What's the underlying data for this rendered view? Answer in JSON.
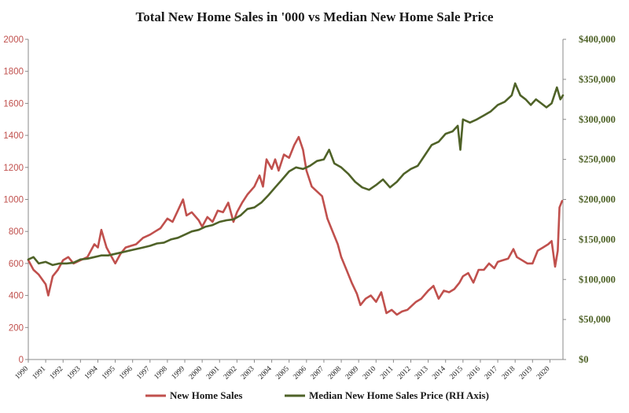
{
  "chart_data": {
    "type": "line",
    "title": "Total New Home Sales in '000 vs Median New Home Sale Price",
    "x_ticks": [
      "1990",
      "1991",
      "1992",
      "1993",
      "1994",
      "1995",
      "1996",
      "1997",
      "1998",
      "1999",
      "2000",
      "2001",
      "2002",
      "2003",
      "2004",
      "2005",
      "2006",
      "2007",
      "2008",
      "2009",
      "2010",
      "2011",
      "2012",
      "2013",
      "2014",
      "2015",
      "2016",
      "2017",
      "2018",
      "2019",
      "2020"
    ],
    "left_axis": {
      "ylim": [
        0,
        2000
      ],
      "ticks": [
        "0",
        "200",
        "400",
        "600",
        "800",
        "1000",
        "1200",
        "1400",
        "1600",
        "1800",
        "2000"
      ]
    },
    "right_axis": {
      "ylim": [
        0,
        400000
      ],
      "ticks": [
        "$0",
        "$50,000",
        "$100,000",
        "$150,000",
        "$200,000",
        "$250,000",
        "$300,000",
        "$350,000",
        "$400,000"
      ]
    },
    "xlim": [
      1990,
      2020.75
    ],
    "grid": false,
    "legend_position": "bottom",
    "series": [
      {
        "name": "New Home Sales",
        "axis": "left",
        "color": "#c0504d",
        "points": [
          [
            1990.0,
            620
          ],
          [
            1990.3,
            560
          ],
          [
            1990.6,
            530
          ],
          [
            1991.0,
            470
          ],
          [
            1991.15,
            400
          ],
          [
            1991.4,
            520
          ],
          [
            1991.7,
            560
          ],
          [
            1992.0,
            620
          ],
          [
            1992.3,
            640
          ],
          [
            1992.6,
            600
          ],
          [
            1993.0,
            620
          ],
          [
            1993.4,
            640
          ],
          [
            1993.8,
            720
          ],
          [
            1994.0,
            700
          ],
          [
            1994.2,
            810
          ],
          [
            1994.5,
            700
          ],
          [
            1994.8,
            640
          ],
          [
            1995.0,
            600
          ],
          [
            1995.3,
            660
          ],
          [
            1995.6,
            700
          ],
          [
            1995.9,
            710
          ],
          [
            1996.2,
            720
          ],
          [
            1996.6,
            760
          ],
          [
            1997.0,
            780
          ],
          [
            1997.3,
            800
          ],
          [
            1997.6,
            820
          ],
          [
            1998.0,
            880
          ],
          [
            1998.3,
            860
          ],
          [
            1998.6,
            930
          ],
          [
            1998.9,
            1000
          ],
          [
            1999.1,
            900
          ],
          [
            1999.4,
            920
          ],
          [
            1999.8,
            870
          ],
          [
            2000.0,
            830
          ],
          [
            2000.3,
            890
          ],
          [
            2000.6,
            860
          ],
          [
            2000.9,
            930
          ],
          [
            2001.2,
            920
          ],
          [
            2001.5,
            980
          ],
          [
            2001.8,
            860
          ],
          [
            2002.0,
            920
          ],
          [
            2002.3,
            980
          ],
          [
            2002.6,
            1030
          ],
          [
            2003.0,
            1080
          ],
          [
            2003.3,
            1150
          ],
          [
            2003.5,
            1080
          ],
          [
            2003.7,
            1250
          ],
          [
            2004.0,
            1190
          ],
          [
            2004.2,
            1250
          ],
          [
            2004.4,
            1180
          ],
          [
            2004.7,
            1280
          ],
          [
            2005.0,
            1260
          ],
          [
            2005.3,
            1340
          ],
          [
            2005.55,
            1390
          ],
          [
            2005.8,
            1310
          ],
          [
            2006.0,
            1180
          ],
          [
            2006.3,
            1080
          ],
          [
            2006.6,
            1050
          ],
          [
            2006.9,
            1020
          ],
          [
            2007.2,
            880
          ],
          [
            2007.5,
            800
          ],
          [
            2007.8,
            720
          ],
          [
            2008.0,
            640
          ],
          [
            2008.3,
            560
          ],
          [
            2008.6,
            480
          ],
          [
            2008.9,
            410
          ],
          [
            2009.1,
            340
          ],
          [
            2009.4,
            380
          ],
          [
            2009.7,
            400
          ],
          [
            2010.0,
            360
          ],
          [
            2010.3,
            420
          ],
          [
            2010.6,
            290
          ],
          [
            2010.9,
            310
          ],
          [
            2011.2,
            280
          ],
          [
            2011.5,
            300
          ],
          [
            2011.8,
            310
          ],
          [
            2012.0,
            330
          ],
          [
            2012.3,
            360
          ],
          [
            2012.6,
            380
          ],
          [
            2013.0,
            430
          ],
          [
            2013.3,
            460
          ],
          [
            2013.6,
            380
          ],
          [
            2013.9,
            430
          ],
          [
            2014.2,
            420
          ],
          [
            2014.5,
            440
          ],
          [
            2014.8,
            480
          ],
          [
            2015.0,
            520
          ],
          [
            2015.3,
            540
          ],
          [
            2015.6,
            480
          ],
          [
            2015.9,
            560
          ],
          [
            2016.2,
            560
          ],
          [
            2016.5,
            600
          ],
          [
            2016.8,
            570
          ],
          [
            2017.0,
            610
          ],
          [
            2017.3,
            620
          ],
          [
            2017.6,
            630
          ],
          [
            2017.9,
            690
          ],
          [
            2018.1,
            640
          ],
          [
            2018.4,
            620
          ],
          [
            2018.7,
            600
          ],
          [
            2019.0,
            600
          ],
          [
            2019.3,
            680
          ],
          [
            2019.6,
            700
          ],
          [
            2019.9,
            720
          ],
          [
            2020.1,
            740
          ],
          [
            2020.3,
            580
          ],
          [
            2020.45,
            680
          ],
          [
            2020.55,
            950
          ],
          [
            2020.7,
            990
          ]
        ]
      },
      {
        "name": "Median New Home Sales Price (RH Axis)",
        "axis": "right",
        "color": "#4f6228",
        "points": [
          [
            1990.0,
            125000
          ],
          [
            1990.3,
            128000
          ],
          [
            1990.6,
            120000
          ],
          [
            1991.0,
            122000
          ],
          [
            1991.4,
            118000
          ],
          [
            1991.8,
            120000
          ],
          [
            1992.2,
            120000
          ],
          [
            1992.6,
            121000
          ],
          [
            1993.0,
            125000
          ],
          [
            1993.4,
            126000
          ],
          [
            1993.8,
            128000
          ],
          [
            1994.2,
            130000
          ],
          [
            1994.6,
            130000
          ],
          [
            1995.0,
            132000
          ],
          [
            1995.4,
            134000
          ],
          [
            1995.8,
            136000
          ],
          [
            1996.2,
            138000
          ],
          [
            1996.6,
            140000
          ],
          [
            1997.0,
            142000
          ],
          [
            1997.4,
            145000
          ],
          [
            1997.8,
            146000
          ],
          [
            1998.2,
            150000
          ],
          [
            1998.6,
            152000
          ],
          [
            1999.0,
            156000
          ],
          [
            1999.4,
            160000
          ],
          [
            1999.8,
            162000
          ],
          [
            2000.2,
            166000
          ],
          [
            2000.6,
            168000
          ],
          [
            2001.0,
            172000
          ],
          [
            2001.4,
            174000
          ],
          [
            2001.8,
            175000
          ],
          [
            2002.2,
            180000
          ],
          [
            2002.6,
            188000
          ],
          [
            2003.0,
            190000
          ],
          [
            2003.4,
            196000
          ],
          [
            2003.8,
            205000
          ],
          [
            2004.2,
            215000
          ],
          [
            2004.6,
            225000
          ],
          [
            2005.0,
            235000
          ],
          [
            2005.4,
            240000
          ],
          [
            2005.8,
            238000
          ],
          [
            2006.2,
            242000
          ],
          [
            2006.6,
            248000
          ],
          [
            2007.0,
            250000
          ],
          [
            2007.3,
            262000
          ],
          [
            2007.6,
            245000
          ],
          [
            2008.0,
            240000
          ],
          [
            2008.4,
            232000
          ],
          [
            2008.8,
            222000
          ],
          [
            2009.2,
            215000
          ],
          [
            2009.6,
            212000
          ],
          [
            2010.0,
            218000
          ],
          [
            2010.4,
            225000
          ],
          [
            2010.8,
            215000
          ],
          [
            2011.2,
            222000
          ],
          [
            2011.6,
            232000
          ],
          [
            2012.0,
            238000
          ],
          [
            2012.4,
            242000
          ],
          [
            2012.8,
            255000
          ],
          [
            2013.2,
            268000
          ],
          [
            2013.6,
            272000
          ],
          [
            2014.0,
            282000
          ],
          [
            2014.4,
            285000
          ],
          [
            2014.7,
            292000
          ],
          [
            2014.85,
            262000
          ],
          [
            2015.0,
            300000
          ],
          [
            2015.4,
            296000
          ],
          [
            2015.8,
            300000
          ],
          [
            2016.2,
            305000
          ],
          [
            2016.6,
            310000
          ],
          [
            2017.0,
            318000
          ],
          [
            2017.4,
            322000
          ],
          [
            2017.8,
            330000
          ],
          [
            2018.0,
            345000
          ],
          [
            2018.3,
            330000
          ],
          [
            2018.6,
            325000
          ],
          [
            2018.9,
            318000
          ],
          [
            2019.2,
            325000
          ],
          [
            2019.5,
            320000
          ],
          [
            2019.8,
            315000
          ],
          [
            2020.1,
            320000
          ],
          [
            2020.4,
            340000
          ],
          [
            2020.6,
            325000
          ],
          [
            2020.75,
            330000
          ]
        ]
      }
    ]
  }
}
